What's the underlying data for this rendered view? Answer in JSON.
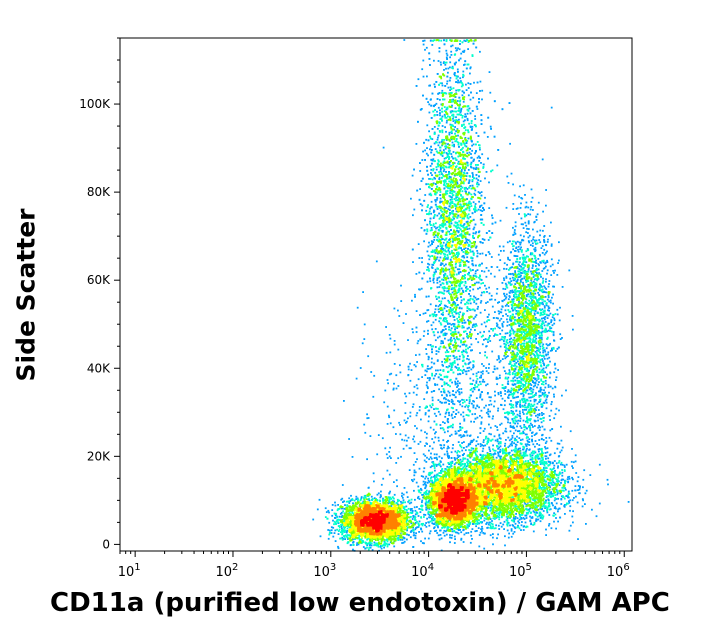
{
  "chart_data": {
    "type": "scatter",
    "subtype": "flow-cytometry density dot plot",
    "xlabel": "CD11a (purified low endotoxin) / GAM APC",
    "ylabel": "Side Scatter",
    "x_scale": "log",
    "xlim": [
      7,
      1200000
    ],
    "ylim": [
      -1500,
      115000
    ],
    "x_ticks": [
      {
        "value": 10,
        "base": "10",
        "exp": "1"
      },
      {
        "value": 100,
        "base": "10",
        "exp": "2"
      },
      {
        "value": 1000,
        "base": "10",
        "exp": "3"
      },
      {
        "value": 10000,
        "base": "10",
        "exp": "4"
      },
      {
        "value": 100000,
        "base": "10",
        "exp": "5"
      },
      {
        "value": 1000000,
        "base": "10",
        "exp": "6"
      }
    ],
    "y_ticks": [
      {
        "value": 0,
        "label": "0"
      },
      {
        "value": 20000,
        "label": "20K"
      },
      {
        "value": 40000,
        "label": "40K"
      },
      {
        "value": 60000,
        "label": "60K"
      },
      {
        "value": 80000,
        "label": "80K"
      },
      {
        "value": 100000,
        "label": "100K"
      }
    ],
    "grid": false,
    "legend": "none",
    "colormap": [
      "#0000ff",
      "#00a0ff",
      "#00ffcc",
      "#7fff00",
      "#ffff00",
      "#ff8000",
      "#ff0000"
    ],
    "populations": [
      {
        "center_log10_x": 3.45,
        "center_y": 5500,
        "spread_log10_x": 0.17,
        "spread_y": 2300,
        "weight": 0.2
      },
      {
        "center_log10_x": 4.25,
        "center_y": 10000,
        "spread_log10_x": 0.12,
        "spread_y": 2800,
        "weight": 0.2
      },
      {
        "center_log10_x": 4.75,
        "center_y": 13500,
        "spread_log10_x": 0.3,
        "spread_y": 4000,
        "weight": 0.24
      },
      {
        "center_log10_x": 4.25,
        "center_y": 75000,
        "spread_log10_x": 0.15,
        "spread_y": 20000,
        "weight": 0.19
      },
      {
        "center_log10_x": 5.0,
        "center_y": 48000,
        "spread_log10_x": 0.13,
        "spread_y": 12000,
        "weight": 0.12
      },
      {
        "center_log10_x": 4.3,
        "center_y": 30000,
        "spread_log10_x": 0.4,
        "spread_y": 15000,
        "weight": 0.05
      }
    ]
  }
}
